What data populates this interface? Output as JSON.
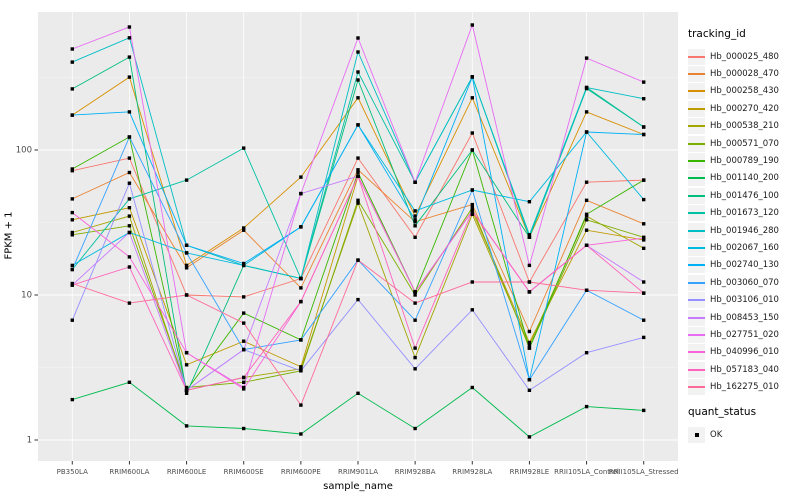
{
  "axes": {
    "xlabel": "sample_name",
    "ylabel": "FPKM + 1",
    "y_tick_labels": [
      "100",
      "10",
      "1"
    ],
    "y_tick_values": [
      100,
      10,
      1
    ]
  },
  "legend": {
    "tracking_title": "tracking_id",
    "quant_title": "quant_status",
    "quant_items": [
      {
        "label": "OK",
        "marker": "black-square"
      }
    ]
  },
  "colors": {
    "panel_background": "#EBEBEB",
    "gridline": "#FFFFFF",
    "tick_text": "#4D4D4D",
    "point": "#000000"
  },
  "chart_data": {
    "type": "line",
    "title": "",
    "xlabel": "sample_name",
    "ylabel": "FPKM + 1",
    "yscale": "log10",
    "ylim": [
      0.8,
      900
    ],
    "grid": true,
    "legend_position": "right",
    "marker": "black-square",
    "categories": [
      "PB350LA",
      "RRIM600LA",
      "RRIM600LE",
      "RRIM600SE",
      "RRIM600PE",
      "RRIM901LA",
      "RRIM928BA",
      "RRIM928LA",
      "RRIM928LE",
      "RRII105LA_Control",
      "RRII105LA_Stressed"
    ],
    "series": [
      {
        "name": "Hb_000025_480",
        "color": "#F8766D",
        "values": [
          72,
          88,
          10,
          9.7,
          13,
          88,
          25,
          131,
          12.3,
          60,
          62
        ]
      },
      {
        "name": "Hb_000028_470",
        "color": "#EA8331",
        "values": [
          46,
          70,
          15.4,
          28,
          11.2,
          73,
          32,
          42,
          5.6,
          45,
          31
        ]
      },
      {
        "name": "Hb_000258_430",
        "color": "#D89000",
        "values": [
          174,
          318,
          16,
          29,
          65,
          229,
          35,
          229,
          25,
          183,
          128
        ]
      },
      {
        "name": "Hb_000270_420",
        "color": "#C09B00",
        "values": [
          33,
          40,
          3.3,
          4.8,
          3.2,
          66,
          10.5,
          38,
          4.7,
          28,
          24
        ]
      },
      {
        "name": "Hb_000538_210",
        "color": "#A3A500",
        "values": [
          27,
          35,
          2.2,
          2.7,
          3.1,
          43,
          3.7,
          36,
          4.5,
          35,
          21
        ]
      },
      {
        "name": "Hb_000571_070",
        "color": "#7CAE00",
        "values": [
          26,
          30,
          2.3,
          2.5,
          3.0,
          45,
          10,
          40,
          4.3,
          33,
          25
        ]
      },
      {
        "name": "Hb_000789_190",
        "color": "#39B600",
        "values": [
          74,
          123,
          2.2,
          7.5,
          4.9,
          70,
          10.5,
          100,
          4.3,
          36,
          62
        ]
      },
      {
        "name": "Hb_001140_200",
        "color": "#00BB4E",
        "values": [
          1.9,
          2.5,
          1.25,
          1.2,
          1.1,
          2.1,
          1.2,
          2.3,
          1.05,
          1.7,
          1.6
        ]
      },
      {
        "name": "Hb_001476_100",
        "color": "#00BF7D",
        "values": [
          264,
          437,
          2.1,
          16,
          13,
          304,
          30,
          100,
          25,
          270,
          144
        ]
      },
      {
        "name": "Hb_001673_120",
        "color": "#00C1A3",
        "values": [
          15,
          46,
          62,
          103,
          13,
          345,
          60,
          320,
          25,
          265,
          144
        ]
      },
      {
        "name": "Hb_001946_280",
        "color": "#00BFC4",
        "values": [
          404,
          594,
          22,
          16,
          13,
          474,
          60,
          320,
          26,
          270,
          226
        ]
      },
      {
        "name": "Hb_002067_160",
        "color": "#00BAE0",
        "values": [
          16,
          27,
          19.5,
          16,
          29.5,
          149,
          38,
          53,
          44,
          133,
          45.5
        ]
      },
      {
        "name": "Hb_002740_130",
        "color": "#00B0F6",
        "values": [
          174,
          183,
          22,
          16.5,
          29.5,
          149,
          33,
          318,
          2.6,
          133,
          128
        ]
      },
      {
        "name": "Hb_003060_070",
        "color": "#35A2FF",
        "values": [
          15,
          123,
          19.5,
          4.2,
          4.9,
          17.4,
          6.7,
          53,
          2.6,
          10.8,
          6.7
        ]
      },
      {
        "name": "Hb_003106_010",
        "color": "#9590FF",
        "values": [
          6.7,
          59,
          2.2,
          4.2,
          3.0,
          9.3,
          3.1,
          7.9,
          2.2,
          4.0,
          5.1
        ]
      },
      {
        "name": "Hb_008453_150",
        "color": "#C77CFF",
        "values": [
          11.7,
          27,
          2.2,
          4.2,
          50,
          66,
          10.5,
          38,
          10.5,
          22,
          12.3
        ]
      },
      {
        "name": "Hb_027751_020",
        "color": "#E76BF3",
        "values": [
          497,
          705,
          4.0,
          2.3,
          50,
          592,
          60,
          728,
          16,
          430,
          294
        ]
      },
      {
        "name": "Hb_040996_010",
        "color": "#FA62DB",
        "values": [
          37,
          18.3,
          4.0,
          2.25,
          9,
          66,
          10.5,
          38,
          10.5,
          22,
          24.7
        ]
      },
      {
        "name": "Hb_057183_040",
        "color": "#FF62BC",
        "values": [
          11.7,
          15.6,
          2.2,
          2.7,
          9,
          66,
          4.3,
          38,
          10.5,
          22,
          10.3
        ]
      },
      {
        "name": "Hb_162275_010",
        "color": "#FF6A98",
        "values": [
          12,
          8.8,
          10,
          6.4,
          1.74,
          17.4,
          8.8,
          12.3,
          12.3,
          10.8,
          10.3
        ]
      }
    ]
  }
}
